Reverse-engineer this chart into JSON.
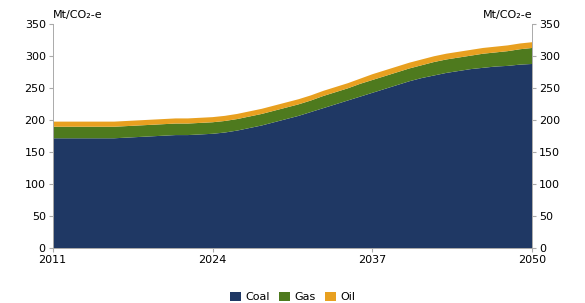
{
  "years": [
    2011,
    2012,
    2013,
    2014,
    2015,
    2016,
    2017,
    2018,
    2019,
    2020,
    2021,
    2022,
    2023,
    2024,
    2025,
    2026,
    2027,
    2028,
    2029,
    2030,
    2031,
    2032,
    2033,
    2034,
    2035,
    2036,
    2037,
    2038,
    2039,
    2040,
    2041,
    2042,
    2043,
    2044,
    2045,
    2046,
    2047,
    2048,
    2049,
    2050
  ],
  "coal": [
    172,
    172,
    172,
    172,
    172,
    172,
    173,
    174,
    175,
    176,
    177,
    177,
    178,
    179,
    181,
    184,
    188,
    192,
    197,
    202,
    207,
    213,
    219,
    225,
    231,
    237,
    243,
    249,
    255,
    261,
    266,
    270,
    274,
    277,
    280,
    282,
    284,
    285,
    287,
    288
  ],
  "gas": [
    18,
    18,
    18,
    18,
    18,
    18,
    18,
    18,
    18,
    18,
    18,
    18,
    18,
    18,
    18,
    18,
    18,
    18,
    18,
    18,
    18,
    18,
    19,
    19,
    19,
    20,
    20,
    20,
    20,
    20,
    20,
    21,
    21,
    21,
    21,
    22,
    22,
    23,
    24,
    25
  ],
  "oil": [
    8,
    8,
    8,
    8,
    8,
    8,
    8,
    8,
    8,
    8,
    8,
    8,
    8,
    8,
    8,
    8,
    8,
    8,
    8,
    8,
    8,
    8,
    8,
    8,
    8,
    8,
    9,
    9,
    9,
    9,
    9,
    9,
    9,
    9,
    9,
    9,
    9,
    9,
    9,
    9
  ],
  "coal_color": "#1f3864",
  "gas_color": "#4e7a1e",
  "oil_color": "#e8a020",
  "ylim": [
    0,
    350
  ],
  "yticks": [
    0,
    50,
    100,
    150,
    200,
    250,
    300,
    350
  ],
  "xticks": [
    2011,
    2024,
    2037,
    2050
  ],
  "ylabel_left": "Mt/CO₂-e",
  "ylabel_right": "Mt/CO₂-e",
  "legend_labels": [
    "Coal",
    "Gas",
    "Oil"
  ],
  "background_color": "#ffffff",
  "axis_fontsize": 8,
  "legend_fontsize": 8
}
